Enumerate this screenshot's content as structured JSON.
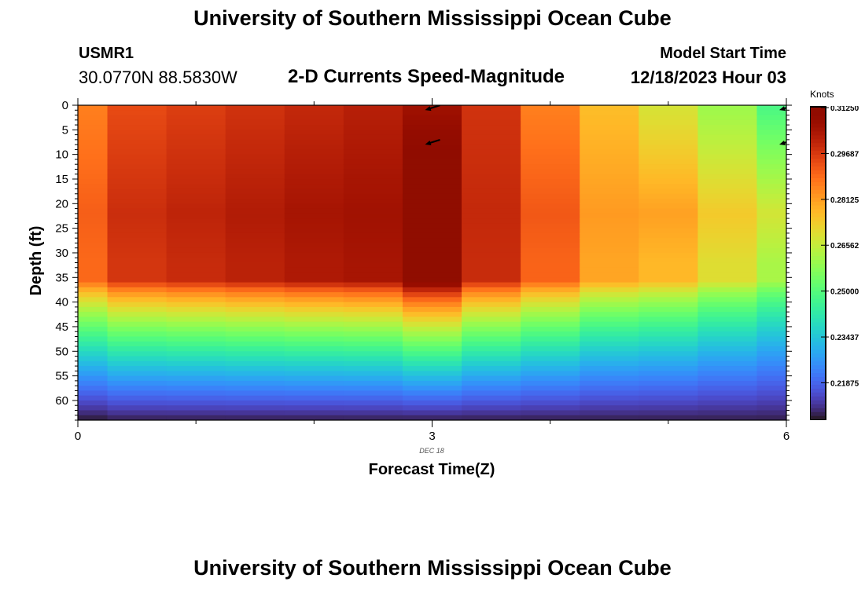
{
  "header": {
    "title": "University of Southern Mississippi Ocean Cube",
    "station": "USMR1",
    "coordinates": "30.0770N  88.5830W",
    "subtitle": "2-D Currents Speed-Magnitude",
    "model_start_label": "Model Start Time",
    "model_start_value": "12/18/2023 Hour 03"
  },
  "footer": {
    "title": "University of Southern Mississippi Ocean Cube"
  },
  "chart_data": {
    "type": "heatmap",
    "title": "2-D Currents Speed-Magnitude",
    "xlabel": "Forecast Time(Z)",
    "ylabel": "Depth (ft)",
    "x_ticks": [
      0,
      3,
      6
    ],
    "x_tick_labels": [
      "0",
      "3",
      "6"
    ],
    "x_date_label": "DEC 18",
    "xlim": [
      0,
      6
    ],
    "y_ticks": [
      0,
      5,
      10,
      15,
      20,
      25,
      30,
      35,
      40,
      45,
      50,
      55,
      60
    ],
    "y_tick_labels": [
      "0",
      "5",
      "10",
      "15",
      "20",
      "25",
      "30",
      "35",
      "40",
      "45",
      "50",
      "55",
      "60"
    ],
    "ylim": [
      0,
      64
    ],
    "y_inverted": true,
    "colorbar": {
      "unit_label": "Knots",
      "range": [
        0.2063,
        0.3125
      ],
      "tick_labels": [
        "0.31250",
        "0.29687",
        "0.28125",
        "0.26562",
        "0.25000",
        "0.23437",
        "0.21875"
      ],
      "tick_values": [
        0.3125,
        0.29687,
        0.28125,
        0.26562,
        0.25,
        0.23437,
        0.21875
      ],
      "colormap": "turbo"
    },
    "time_columns": [
      0,
      0.5,
      1,
      1.5,
      2,
      2.5,
      3,
      3.5,
      4,
      4.5,
      5,
      5.5,
      6
    ],
    "speed_profiles": [
      {
        "time": 0,
        "surface": 0.286,
        "core": 0.291,
        "deep": 0.207
      },
      {
        "time": 0.5,
        "surface": 0.294,
        "core": 0.299,
        "deep": 0.208
      },
      {
        "time": 1,
        "surface": 0.296,
        "core": 0.301,
        "deep": 0.208
      },
      {
        "time": 1.5,
        "surface": 0.298,
        "core": 0.303,
        "deep": 0.208
      },
      {
        "time": 2,
        "surface": 0.3,
        "core": 0.305,
        "deep": 0.208
      },
      {
        "time": 2.5,
        "surface": 0.302,
        "core": 0.306,
        "deep": 0.208
      },
      {
        "time": 3,
        "surface": 0.306,
        "core": 0.318,
        "deep": 0.208
      },
      {
        "time": 3.5,
        "surface": 0.298,
        "core": 0.3,
        "deep": 0.208
      },
      {
        "time": 4,
        "surface": 0.286,
        "core": 0.292,
        "deep": 0.208
      },
      {
        "time": 4.5,
        "surface": 0.276,
        "core": 0.282,
        "deep": 0.208
      },
      {
        "time": 5,
        "surface": 0.268,
        "core": 0.281,
        "deep": 0.208
      },
      {
        "time": 5.5,
        "surface": 0.26,
        "core": 0.274,
        "deep": 0.208
      },
      {
        "time": 6,
        "surface": 0.248,
        "core": 0.268,
        "deep": 0.208
      }
    ],
    "vectors": [
      {
        "time": 3,
        "depth": 0.5,
        "direction": "west-southwest"
      },
      {
        "time": 3,
        "depth": 7.5,
        "direction": "west-southwest"
      },
      {
        "time": 6,
        "depth": 0.5,
        "direction": "west-southwest"
      },
      {
        "time": 6,
        "depth": 7.5,
        "direction": "west-southwest"
      }
    ]
  }
}
